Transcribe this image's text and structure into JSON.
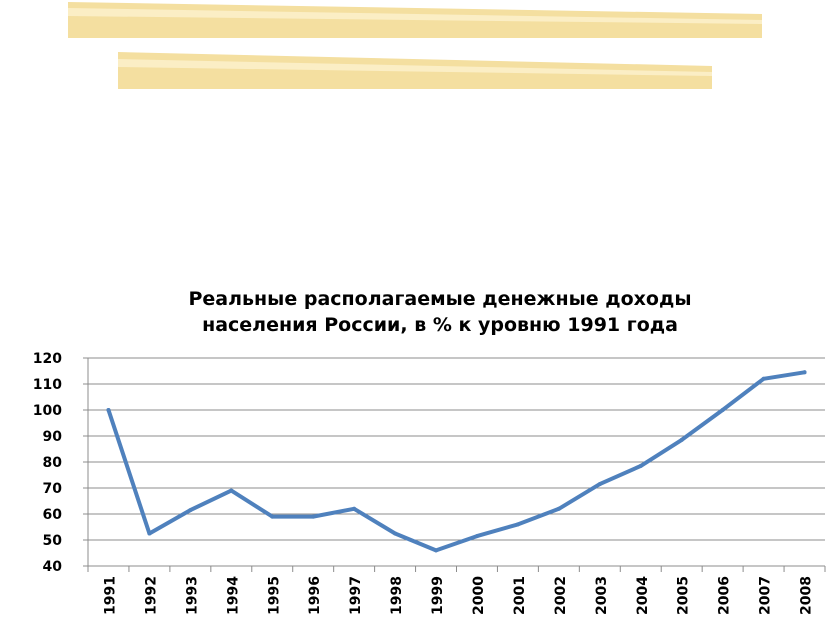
{
  "decoration": {
    "bar_color": "#f4dfa0",
    "bar_stripe_color": "#fbeec5"
  },
  "chart_data": {
    "type": "line",
    "title_lines": [
      "Реальные располагаемые денежные доходы",
      "населения России, в % к уровню 1991 года"
    ],
    "xlabel": "",
    "ylabel": "",
    "x": [
      "1991",
      "1992",
      "1993",
      "1994",
      "1995",
      "1996",
      "1997",
      "1998",
      "1999",
      "2000",
      "2001",
      "2002",
      "2003",
      "2004",
      "2005",
      "2006",
      "2007",
      "2008"
    ],
    "series": [
      {
        "values": [
          100,
          52.5,
          61.5,
          69,
          59,
          59,
          62,
          52.5,
          46,
          51.5,
          56,
          62,
          71.5,
          78.5,
          88.5,
          100,
          112,
          114.5
        ],
        "color": "#4f81bd"
      }
    ],
    "ylim": [
      40,
      120
    ],
    "yticks": [
      "120",
      "110",
      "100",
      "90",
      "80",
      "70",
      "60",
      "50",
      "40"
    ],
    "grid": true,
    "legend": "none"
  }
}
